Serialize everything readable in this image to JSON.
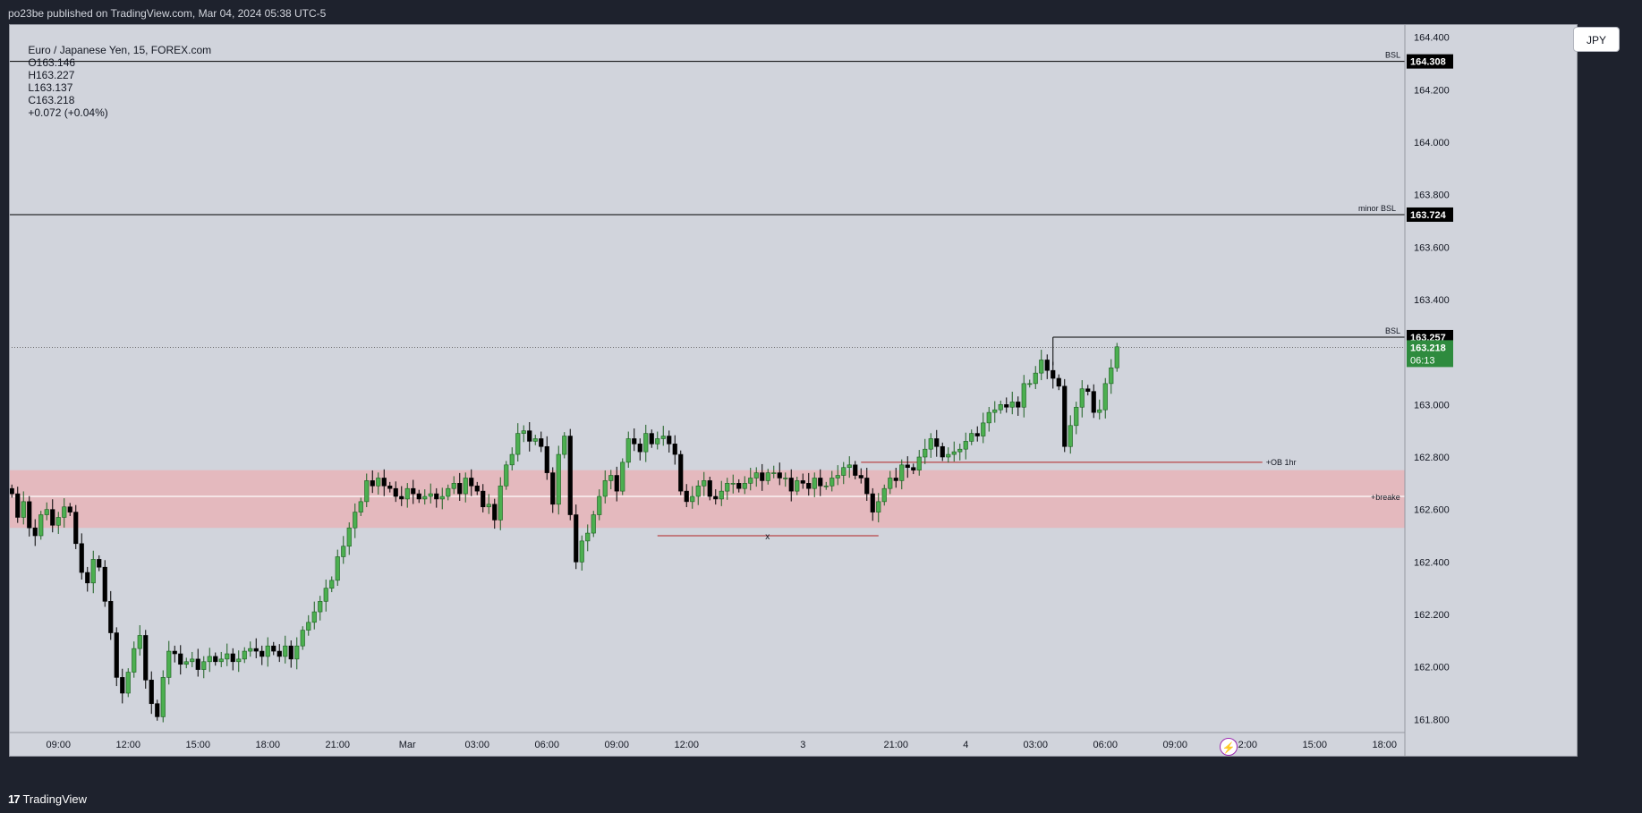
{
  "header": {
    "publisher_text": "po23be published on TradingView.com, Mar 04, 2024 05:38 UTC-5"
  },
  "symbol": {
    "name": "Euro / Japanese Yen, 15, FOREX.com",
    "open": "O163.146",
    "high": "H163.227",
    "low": "L163.137",
    "close": "C163.218",
    "change": "+0.072 (+0.04%)"
  },
  "currency_button": "JPY",
  "footer": {
    "brand": "TradingView",
    "brand_mark": "17"
  },
  "colors": {
    "bull": "#4caf50",
    "bear": "#000000",
    "zone": "#e8b4b8",
    "ob_line": "#b22222",
    "last_price": "#2e8b3e",
    "background": "#d1d4dc"
  },
  "chart_data": {
    "type": "candlestick",
    "title": "Euro / Japanese Yen, 15, FOREX.com",
    "ylim": [
      161.75,
      164.45
    ],
    "y_ticks": [
      "164.400",
      "164.200",
      "164.000",
      "163.800",
      "163.600",
      "163.400",
      "163.200",
      "163.000",
      "162.800",
      "162.600",
      "162.400",
      "162.200",
      "162.000",
      "161.800"
    ],
    "x_ticks": [
      {
        "label": "09:00",
        "idx": 8
      },
      {
        "label": "12:00",
        "idx": 20
      },
      {
        "label": "15:00",
        "idx": 32
      },
      {
        "label": "18:00",
        "idx": 44
      },
      {
        "label": "21:00",
        "idx": 56
      },
      {
        "label": "Mar",
        "idx": 68
      },
      {
        "label": "03:00",
        "idx": 80
      },
      {
        "label": "06:00",
        "idx": 92
      },
      {
        "label": "09:00",
        "idx": 104
      },
      {
        "label": "12:00",
        "idx": 116
      },
      {
        "label": "3",
        "idx": 136
      },
      {
        "label": "21:00",
        "idx": 152
      },
      {
        "label": "4",
        "idx": 164
      },
      {
        "label": "03:00",
        "idx": 176
      },
      {
        "label": "06:00",
        "idx": 188
      },
      {
        "label": "09:00",
        "idx": 200
      },
      {
        "label": "12:00",
        "idx": 212
      },
      {
        "label": "15:00",
        "idx": 224
      },
      {
        "label": "18:00",
        "idx": 236
      }
    ],
    "total_slots": 240,
    "closes": [
      162.66,
      162.57,
      162.63,
      162.53,
      162.5,
      162.58,
      162.6,
      162.54,
      162.57,
      162.61,
      162.59,
      162.47,
      162.36,
      162.32,
      162.41,
      162.38,
      162.25,
      162.13,
      161.96,
      161.9,
      161.98,
      162.07,
      162.12,
      161.95,
      161.86,
      161.81,
      161.96,
      162.06,
      162.05,
      162.01,
      162.02,
      162.03,
      161.99,
      162.02,
      162.04,
      162.02,
      162.03,
      162.05,
      162.02,
      162.03,
      162.06,
      162.07,
      162.06,
      162.04,
      162.08,
      162.06,
      162.04,
      162.08,
      162.03,
      162.08,
      162.14,
      162.17,
      162.21,
      162.25,
      162.3,
      162.33,
      162.42,
      162.46,
      162.53,
      162.59,
      162.63,
      162.71,
      162.69,
      162.72,
      162.69,
      162.68,
      162.65,
      162.64,
      162.68,
      162.66,
      162.64,
      162.65,
      162.66,
      162.64,
      162.65,
      162.68,
      162.7,
      162.66,
      162.72,
      162.69,
      162.67,
      162.61,
      162.62,
      162.56,
      162.69,
      162.77,
      162.81,
      162.89,
      162.9,
      162.86,
      162.87,
      162.84,
      162.74,
      162.62,
      162.81,
      162.88,
      162.58,
      162.4,
      162.48,
      162.51,
      162.58,
      162.65,
      162.71,
      162.73,
      162.67,
      162.78,
      162.87,
      162.85,
      162.82,
      162.89,
      162.85,
      162.87,
      162.88,
      162.85,
      162.81,
      162.67,
      162.63,
      162.65,
      162.69,
      162.71,
      162.65,
      162.64,
      162.67,
      162.7,
      162.7,
      162.68,
      162.7,
      162.72,
      162.74,
      162.71,
      162.74,
      162.74,
      162.72,
      162.72,
      162.67,
      162.71,
      162.7,
      162.68,
      162.72,
      162.69,
      162.69,
      162.72,
      162.73,
      162.76,
      162.77,
      162.73,
      162.72,
      162.66,
      162.59,
      162.63,
      162.68,
      162.72,
      162.71,
      162.77,
      162.76,
      162.75,
      162.8,
      162.83,
      162.87,
      162.84,
      162.8,
      162.81,
      162.82,
      162.83,
      162.86,
      162.89,
      162.88,
      162.93,
      162.97,
      162.98,
      163.0,
      162.99,
      163.01,
      162.99,
      163.08,
      163.08,
      163.12,
      163.17,
      163.13,
      163.1,
      163.07,
      162.84,
      162.92,
      162.99,
      163.06,
      163.05,
      162.97,
      162.98,
      163.08,
      163.14,
      163.22
    ]
  },
  "levels": {
    "bsl_top": {
      "label": "BSL",
      "price_label": "164.308",
      "price": 164.308
    },
    "minor_bsl": {
      "label": "minor BSL",
      "price_label": "163.724",
      "price": 163.724
    },
    "bsl_recent": {
      "label": "BSL",
      "price_label": "163.257",
      "price": 163.257
    },
    "last_price": {
      "price_label": "163.218",
      "countdown": "06:13",
      "price": 163.218
    },
    "ob": {
      "label": "+OB 1hr",
      "price": 162.78
    },
    "zone": {
      "top": 162.75,
      "bottom": 162.53
    },
    "breaker": {
      "label": "+breake",
      "price": 162.65
    },
    "sweep": {
      "label": "x",
      "price": 162.5
    }
  }
}
